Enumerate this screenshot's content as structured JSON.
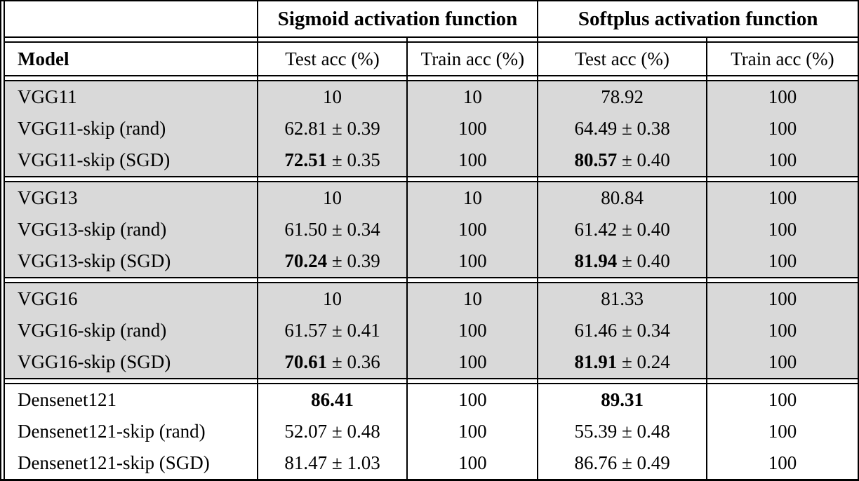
{
  "plus_minus": "±",
  "colors": {
    "shaded_row_bg": "#d9d9d9",
    "border": "#000000",
    "background": "#ffffff"
  },
  "header": {
    "group_labels": [
      "Sigmoid activation function",
      "Softplus activation function"
    ],
    "model_label": "Model",
    "sub_columns": [
      "Test acc (%)",
      "Train acc (%)",
      "Test acc (%)",
      "Train acc (%)"
    ]
  },
  "groups": [
    {
      "shaded": true,
      "rows": [
        {
          "model": "VGG11",
          "cells": [
            {
              "value": "10",
              "bold": false,
              "pm": null
            },
            {
              "value": "10",
              "bold": false,
              "pm": null
            },
            {
              "value": "78.92",
              "bold": false,
              "pm": null
            },
            {
              "value": "100",
              "bold": false,
              "pm": null
            }
          ]
        },
        {
          "model": "VGG11-skip (rand)",
          "cells": [
            {
              "value": "62.81",
              "bold": false,
              "pm": "0.39"
            },
            {
              "value": "100",
              "bold": false,
              "pm": null
            },
            {
              "value": "64.49",
              "bold": false,
              "pm": "0.38"
            },
            {
              "value": "100",
              "bold": false,
              "pm": null
            }
          ]
        },
        {
          "model": "VGG11-skip (SGD)",
          "cells": [
            {
              "value": "72.51",
              "bold": true,
              "pm": "0.35"
            },
            {
              "value": "100",
              "bold": false,
              "pm": null
            },
            {
              "value": "80.57",
              "bold": true,
              "pm": "0.40"
            },
            {
              "value": "100",
              "bold": false,
              "pm": null
            }
          ]
        }
      ]
    },
    {
      "shaded": true,
      "rows": [
        {
          "model": "VGG13",
          "cells": [
            {
              "value": "10",
              "bold": false,
              "pm": null
            },
            {
              "value": "10",
              "bold": false,
              "pm": null
            },
            {
              "value": "80.84",
              "bold": false,
              "pm": null
            },
            {
              "value": "100",
              "bold": false,
              "pm": null
            }
          ]
        },
        {
          "model": "VGG13-skip (rand)",
          "cells": [
            {
              "value": "61.50",
              "bold": false,
              "pm": "0.34"
            },
            {
              "value": "100",
              "bold": false,
              "pm": null
            },
            {
              "value": "61.42",
              "bold": false,
              "pm": "0.40"
            },
            {
              "value": "100",
              "bold": false,
              "pm": null
            }
          ]
        },
        {
          "model": "VGG13-skip (SGD)",
          "cells": [
            {
              "value": "70.24",
              "bold": true,
              "pm": "0.39"
            },
            {
              "value": "100",
              "bold": false,
              "pm": null
            },
            {
              "value": "81.94",
              "bold": true,
              "pm": "0.40"
            },
            {
              "value": "100",
              "bold": false,
              "pm": null
            }
          ]
        }
      ]
    },
    {
      "shaded": true,
      "rows": [
        {
          "model": "VGG16",
          "cells": [
            {
              "value": "10",
              "bold": false,
              "pm": null
            },
            {
              "value": "10",
              "bold": false,
              "pm": null
            },
            {
              "value": "81.33",
              "bold": false,
              "pm": null
            },
            {
              "value": "100",
              "bold": false,
              "pm": null
            }
          ]
        },
        {
          "model": "VGG16-skip (rand)",
          "cells": [
            {
              "value": "61.57",
              "bold": false,
              "pm": "0.41"
            },
            {
              "value": "100",
              "bold": false,
              "pm": null
            },
            {
              "value": "61.46",
              "bold": false,
              "pm": "0.34"
            },
            {
              "value": "100",
              "bold": false,
              "pm": null
            }
          ]
        },
        {
          "model": "VGG16-skip (SGD)",
          "cells": [
            {
              "value": "70.61",
              "bold": true,
              "pm": "0.36"
            },
            {
              "value": "100",
              "bold": false,
              "pm": null
            },
            {
              "value": "81.91",
              "bold": true,
              "pm": "0.24"
            },
            {
              "value": "100",
              "bold": false,
              "pm": null
            }
          ]
        }
      ]
    },
    {
      "shaded": false,
      "rows": [
        {
          "model": "Densenet121",
          "cells": [
            {
              "value": "86.41",
              "bold": true,
              "pm": null
            },
            {
              "value": "100",
              "bold": false,
              "pm": null
            },
            {
              "value": "89.31",
              "bold": true,
              "pm": null
            },
            {
              "value": "100",
              "bold": false,
              "pm": null
            }
          ]
        },
        {
          "model": "Densenet121-skip (rand)",
          "cells": [
            {
              "value": "52.07",
              "bold": false,
              "pm": "0.48"
            },
            {
              "value": "100",
              "bold": false,
              "pm": null
            },
            {
              "value": "55.39",
              "bold": false,
              "pm": "0.48"
            },
            {
              "value": "100",
              "bold": false,
              "pm": null
            }
          ]
        },
        {
          "model": "Densenet121-skip (SGD)",
          "cells": [
            {
              "value": "81.47",
              "bold": false,
              "pm": "1.03"
            },
            {
              "value": "100",
              "bold": false,
              "pm": null
            },
            {
              "value": "86.76",
              "bold": false,
              "pm": "0.49"
            },
            {
              "value": "100",
              "bold": false,
              "pm": null
            }
          ]
        }
      ]
    }
  ]
}
